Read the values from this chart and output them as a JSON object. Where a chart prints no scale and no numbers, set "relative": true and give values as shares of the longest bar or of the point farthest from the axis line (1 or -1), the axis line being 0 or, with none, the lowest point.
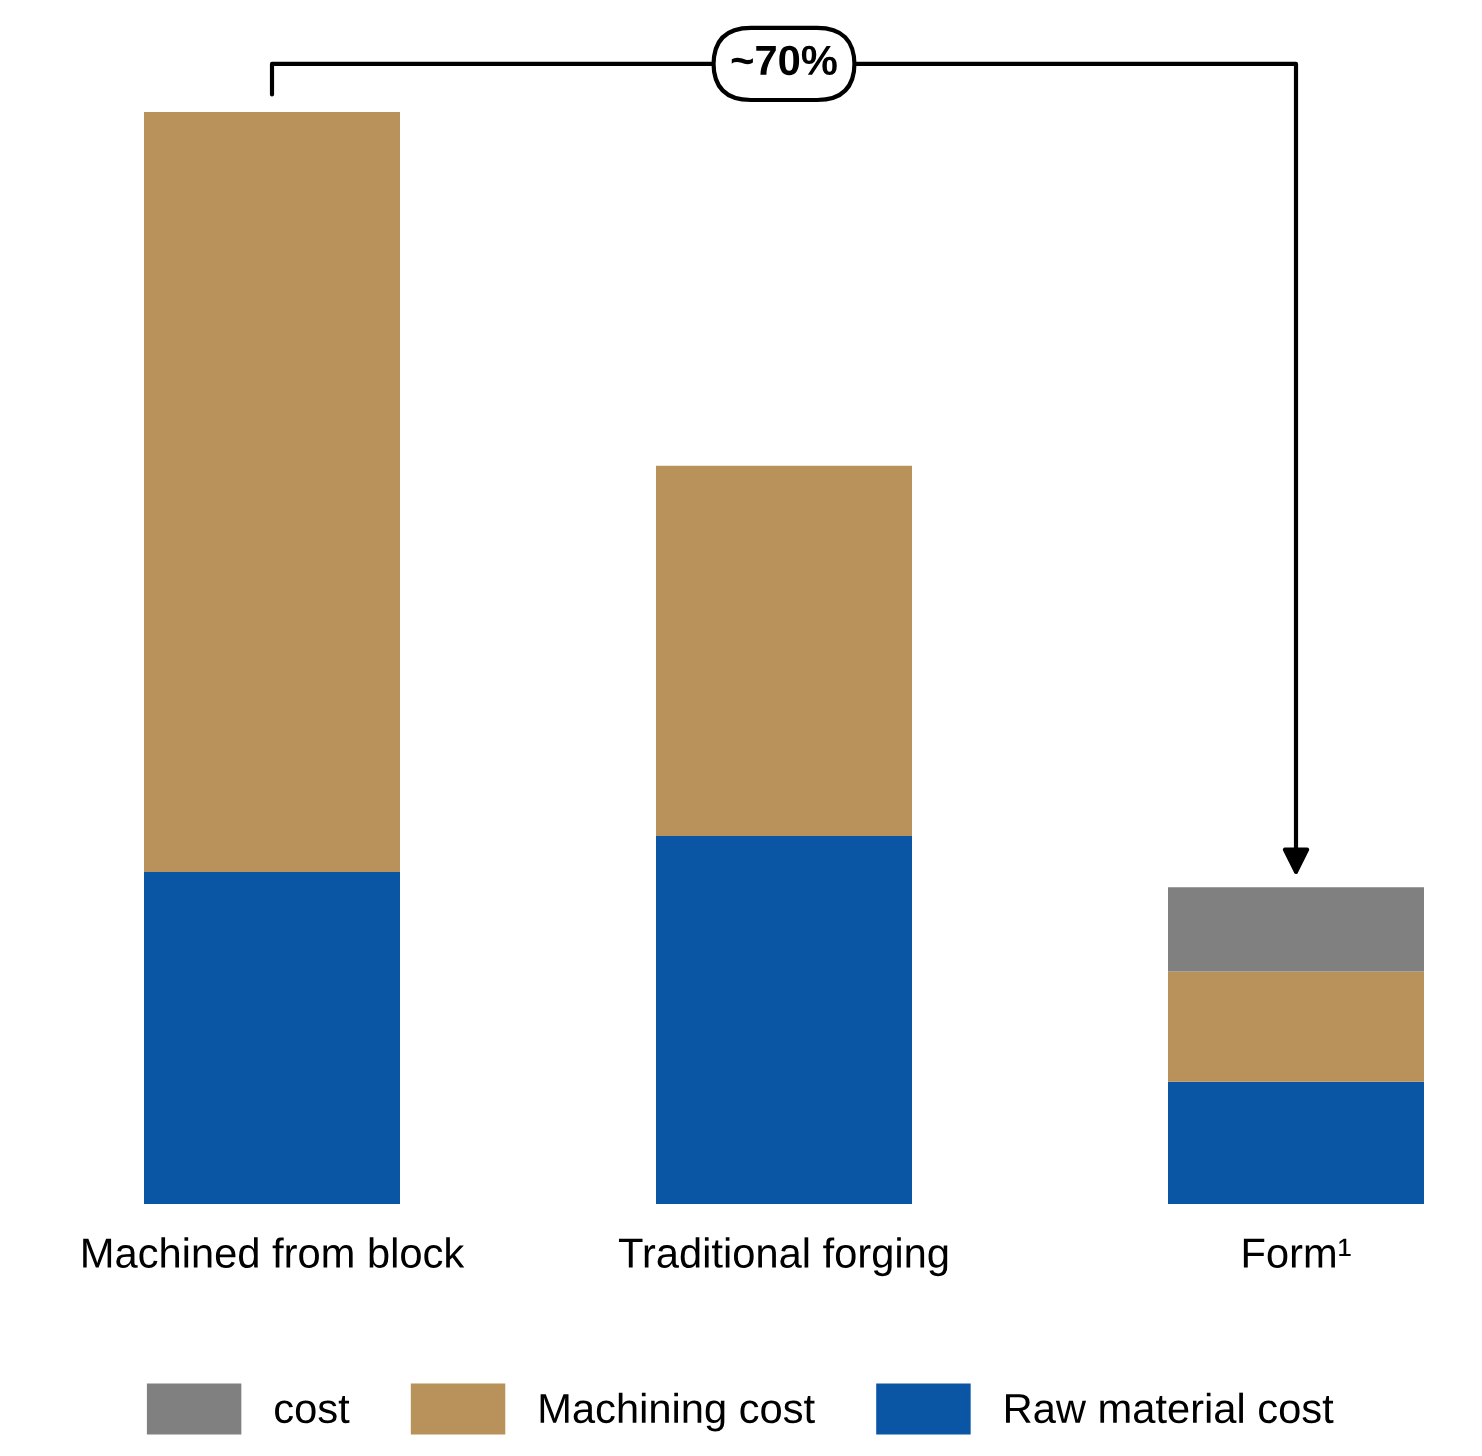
{
  "chart_data": {
    "type": "bar",
    "stacked": true,
    "relative": true,
    "categories": [
      "Machined from block",
      "Traditional forging",
      "Form¹"
    ],
    "series": [
      {
        "name": "Raw material cost",
        "color": "#0a56a5",
        "values": [
          0.304,
          0.337,
          0.112
        ]
      },
      {
        "name": "Machining cost",
        "color": "#b8925a",
        "values": [
          0.696,
          0.339,
          0.101
        ]
      },
      {
        "name": "cost",
        "color": "#808080",
        "values": [
          0,
          0,
          0.077
        ]
      }
    ],
    "annotations": [
      "~70%"
    ],
    "legend": "bottom",
    "grid": false
  }
}
